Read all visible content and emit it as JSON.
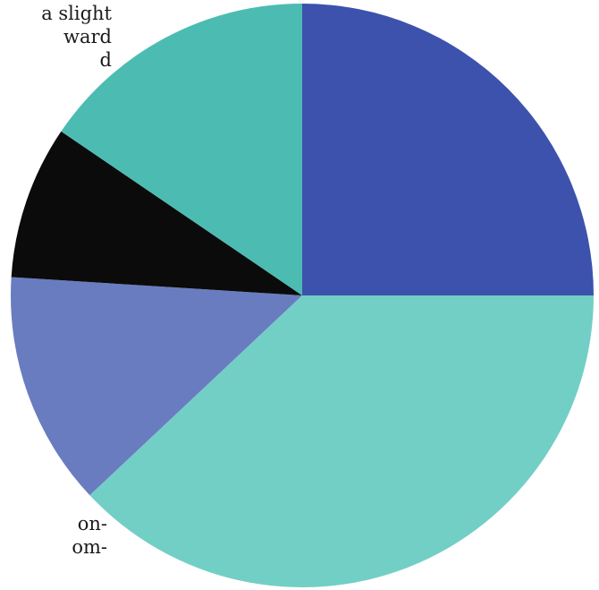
{
  "background_text": {
    "top_lines": [
      "a slight",
      "ward",
      "d"
    ],
    "bottom_lines": [
      "on-",
      "om-"
    ]
  },
  "chart_data": {
    "type": "pie",
    "title": "",
    "slices": [
      {
        "value": 25.0,
        "color": "#3c52ac"
      },
      {
        "value": 38.0,
        "color": "#72cfc5"
      },
      {
        "value": 13.0,
        "color": "#6a7cc0"
      },
      {
        "value": 8.5,
        "color": "#0b0b0b"
      },
      {
        "value": 15.5,
        "color": "#4cbcb2"
      }
    ],
    "start_angle_deg": 0,
    "direction": "clockwise",
    "legend": "none"
  }
}
